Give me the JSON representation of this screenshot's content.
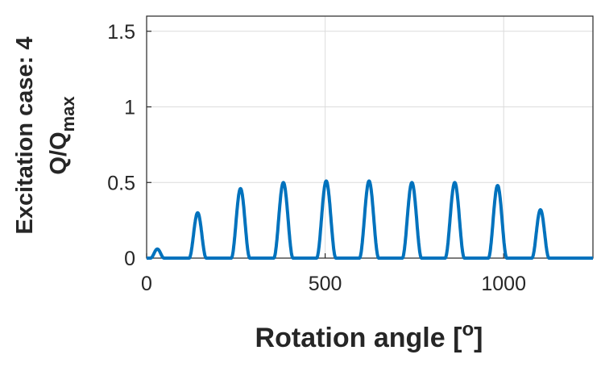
{
  "chart_data": {
    "type": "line",
    "title": "",
    "xlabel": "Rotation angle [",
    "xlabel_sup": "o",
    "xlabel_end": "]",
    "ylabel_line1": "Excitation case: 4",
    "ylabel_line2": "Q/Q",
    "ylabel_sub": "max",
    "xlim": [
      0,
      1250
    ],
    "ylim": [
      0,
      1.6
    ],
    "xticks": [
      0,
      500,
      1000
    ],
    "xtick_labels": [
      "0",
      "500",
      "1000"
    ],
    "yticks": [
      0,
      0.5,
      1,
      1.5
    ],
    "ytick_labels": [
      "0",
      "0.5",
      "1",
      "1.5"
    ],
    "grid": true,
    "series_color": "#0072BD",
    "pulses": [
      {
        "center": 30,
        "width": 38,
        "peak": 0.06
      },
      {
        "center": 143,
        "width": 48,
        "peak": 0.3
      },
      {
        "center": 263,
        "width": 52,
        "peak": 0.46
      },
      {
        "center": 383,
        "width": 54,
        "peak": 0.5
      },
      {
        "center": 503,
        "width": 54,
        "peak": 0.51
      },
      {
        "center": 623,
        "width": 54,
        "peak": 0.51
      },
      {
        "center": 743,
        "width": 54,
        "peak": 0.5
      },
      {
        "center": 863,
        "width": 54,
        "peak": 0.5
      },
      {
        "center": 983,
        "width": 52,
        "peak": 0.48
      },
      {
        "center": 1103,
        "width": 48,
        "peak": 0.32
      }
    ]
  }
}
